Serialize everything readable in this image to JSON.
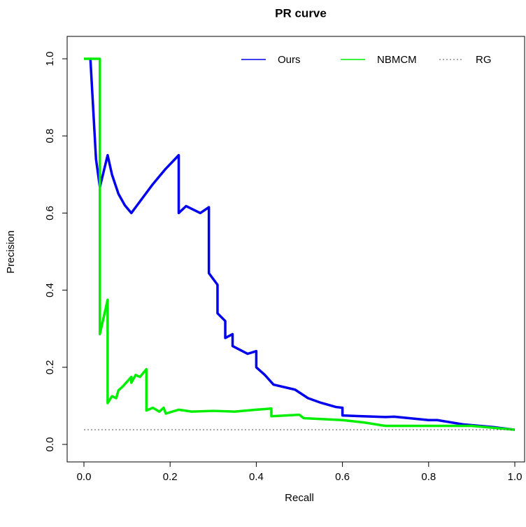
{
  "chart_data": {
    "type": "line",
    "title": "PR curve",
    "x_label": "Recall",
    "y_label": "Precision",
    "xlim": [
      0,
      1
    ],
    "ylim": [
      0,
      1
    ],
    "xticks": [
      {
        "value": 0,
        "label": "0.0"
      },
      0.2,
      0.4,
      0.6,
      0.8,
      {
        "value": 1,
        "label": "1.0"
      }
    ],
    "yticks": [
      {
        "value": 0,
        "label": "0.0"
      },
      0.2,
      0.4,
      0.6,
      0.8,
      {
        "value": 1,
        "label": "1.0"
      }
    ],
    "legend": "top-right",
    "series": [
      {
        "name": "Ours",
        "color": "#0000ee",
        "style": "solid",
        "x": [
          0.015,
          0.028,
          0.037,
          0.055,
          0.065,
          0.08,
          0.095,
          0.11,
          0.13,
          0.16,
          0.19,
          0.22,
          0.22,
          0.237,
          0.27,
          0.29,
          0.29,
          0.31,
          0.31,
          0.328,
          0.328,
          0.345,
          0.345,
          0.38,
          0.4,
          0.4,
          0.42,
          0.44,
          0.49,
          0.52,
          0.55,
          0.585,
          0.6,
          0.6,
          0.7,
          0.72,
          0.8,
          0.82,
          0.88,
          0.95,
          1.0
        ],
        "values": [
          1.0,
          0.74,
          0.667,
          0.75,
          0.7,
          0.65,
          0.62,
          0.6,
          0.63,
          0.675,
          0.715,
          0.75,
          0.6,
          0.618,
          0.6,
          0.615,
          0.444,
          0.414,
          0.34,
          0.32,
          0.276,
          0.286,
          0.255,
          0.235,
          0.242,
          0.2,
          0.18,
          0.155,
          0.142,
          0.12,
          0.108,
          0.097,
          0.095,
          0.075,
          0.071,
          0.072,
          0.063,
          0.063,
          0.052,
          0.045,
          0.038
        ]
      },
      {
        "name": "NBMCM",
        "color": "#00ee00",
        "style": "solid",
        "x": [
          0,
          0.037,
          0.037,
          0.055,
          0.055,
          0.065,
          0.075,
          0.08,
          0.09,
          0.11,
          0.11,
          0.12,
          0.13,
          0.145,
          0.145,
          0.16,
          0.175,
          0.185,
          0.19,
          0.22,
          0.25,
          0.3,
          0.35,
          0.4,
          0.435,
          0.435,
          0.5,
          0.51,
          0.6,
          0.65,
          0.7,
          0.8,
          0.9,
          1.0
        ],
        "values": [
          1.0,
          1.0,
          0.286,
          0.375,
          0.107,
          0.125,
          0.12,
          0.14,
          0.15,
          0.175,
          0.16,
          0.18,
          0.175,
          0.195,
          0.088,
          0.095,
          0.085,
          0.095,
          0.08,
          0.09,
          0.085,
          0.087,
          0.085,
          0.09,
          0.093,
          0.073,
          0.077,
          0.068,
          0.063,
          0.057,
          0.048,
          0.048,
          0.048,
          0.038
        ]
      },
      {
        "name": "RG",
        "color": "#555555",
        "style": "dotted",
        "x": [
          0,
          1
        ],
        "values": [
          0.038,
          0.038
        ]
      }
    ]
  }
}
